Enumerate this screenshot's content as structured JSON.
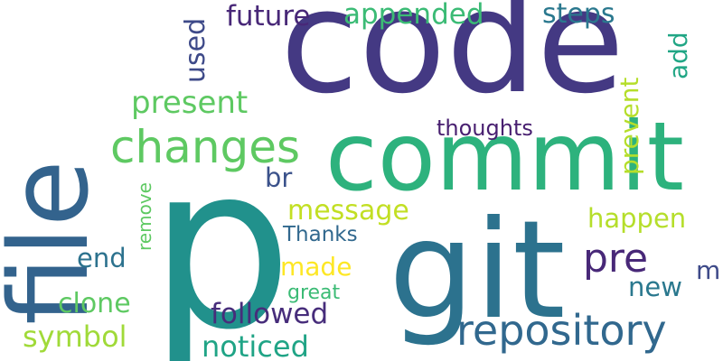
{
  "word_cloud": {
    "words": [
      {
        "key": "p",
        "text": "p",
        "color": "#21918c",
        "vertical": false
      },
      {
        "key": "code",
        "text": "code",
        "color": "#443983",
        "vertical": false
      },
      {
        "key": "commit",
        "text": "commit",
        "color": "#2db27d",
        "vertical": false
      },
      {
        "key": "git",
        "text": "git",
        "color": "#2c728e",
        "vertical": false
      },
      {
        "key": "file",
        "text": "file",
        "color": "#33638d",
        "vertical": true
      },
      {
        "key": "changes",
        "text": "changes",
        "color": "#5ec962",
        "vertical": false
      },
      {
        "key": "repository",
        "text": "repository",
        "color": "#31688e",
        "vertical": false
      },
      {
        "key": "pre",
        "text": "pre",
        "color": "#482878",
        "vertical": false
      },
      {
        "key": "present",
        "text": "present",
        "color": "#5ec962",
        "vertical": false
      },
      {
        "key": "appended",
        "text": "appended",
        "color": "#3bbb75",
        "vertical": false
      },
      {
        "key": "future",
        "text": "future",
        "color": "#482878",
        "vertical": false
      },
      {
        "key": "steps",
        "text": "steps",
        "color": "#2a788e",
        "vertical": false
      },
      {
        "key": "used",
        "text": "used",
        "color": "#3e4a89",
        "vertical": true
      },
      {
        "key": "add",
        "text": "add",
        "color": "#21a685",
        "vertical": true
      },
      {
        "key": "prevent",
        "text": "prevent",
        "color": "#b5de2b",
        "vertical": true
      },
      {
        "key": "thoughts",
        "text": "thoughts",
        "color": "#481f70",
        "vertical": false
      },
      {
        "key": "br",
        "text": "br",
        "color": "#3b528b",
        "vertical": false
      },
      {
        "key": "message",
        "text": "message",
        "color": "#c2df23",
        "vertical": false
      },
      {
        "key": "happen",
        "text": "happen",
        "color": "#b5de2b",
        "vertical": false
      },
      {
        "key": "Thanks",
        "text": "Thanks",
        "color": "#31688e",
        "vertical": false
      },
      {
        "key": "remove",
        "text": "remove",
        "color": "#5ec962",
        "vertical": true
      },
      {
        "key": "end",
        "text": "end",
        "color": "#2c728e",
        "vertical": false
      },
      {
        "key": "made",
        "text": "made",
        "color": "#fde725",
        "vertical": false
      },
      {
        "key": "m",
        "text": "m",
        "color": "#3e4a89",
        "vertical": false
      },
      {
        "key": "new",
        "text": "new",
        "color": "#2a788e",
        "vertical": false
      },
      {
        "key": "great",
        "text": "great",
        "color": "#3bbb75",
        "vertical": false
      },
      {
        "key": "clone",
        "text": "clone",
        "color": "#5ec962",
        "vertical": false
      },
      {
        "key": "followed",
        "text": "followed",
        "color": "#472d7b",
        "vertical": false
      },
      {
        "key": "symbol",
        "text": "symbol",
        "color": "#a0da39",
        "vertical": false
      },
      {
        "key": "noticed",
        "text": "noticed",
        "color": "#20a486",
        "vertical": false
      }
    ]
  }
}
